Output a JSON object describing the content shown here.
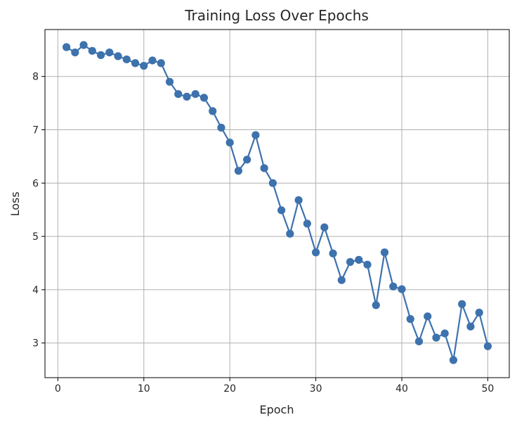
{
  "chart_data": {
    "type": "line",
    "title": "Training Loss Over Epochs",
    "xlabel": "Epoch",
    "ylabel": "Loss",
    "xlim": [
      -1.5,
      52.5
    ],
    "ylim": [
      2.35,
      8.88
    ],
    "xticks": [
      0,
      10,
      20,
      30,
      40,
      50
    ],
    "yticks": [
      3,
      4,
      5,
      6,
      7,
      8
    ],
    "grid": true,
    "line_color": "#3d72ad",
    "series": [
      {
        "x": [
          1,
          2,
          3,
          4,
          5,
          6,
          7,
          8,
          9,
          10,
          11,
          12,
          13,
          14,
          15,
          16,
          17,
          18,
          19,
          20,
          21,
          22,
          23,
          24,
          25,
          26,
          27,
          28,
          29,
          30,
          31,
          32,
          33,
          34,
          35,
          36,
          37,
          38,
          39,
          40,
          41,
          42,
          43,
          44,
          45,
          46,
          47,
          48,
          49,
          50
        ],
        "values": [
          8.55,
          8.45,
          8.59,
          8.48,
          8.4,
          8.45,
          8.38,
          8.32,
          8.25,
          8.2,
          8.3,
          8.25,
          7.9,
          7.67,
          7.62,
          7.67,
          7.6,
          7.35,
          7.04,
          6.76,
          6.23,
          6.44,
          6.9,
          6.28,
          6.0,
          5.49,
          5.05,
          5.68,
          5.24,
          4.7,
          5.17,
          4.68,
          4.18,
          4.52,
          4.56,
          4.47,
          3.71,
          4.7,
          4.06,
          4.01,
          3.45,
          3.03,
          3.5,
          3.1,
          3.18,
          2.68,
          3.73,
          3.31,
          3.57,
          2.94
        ]
      }
    ]
  }
}
